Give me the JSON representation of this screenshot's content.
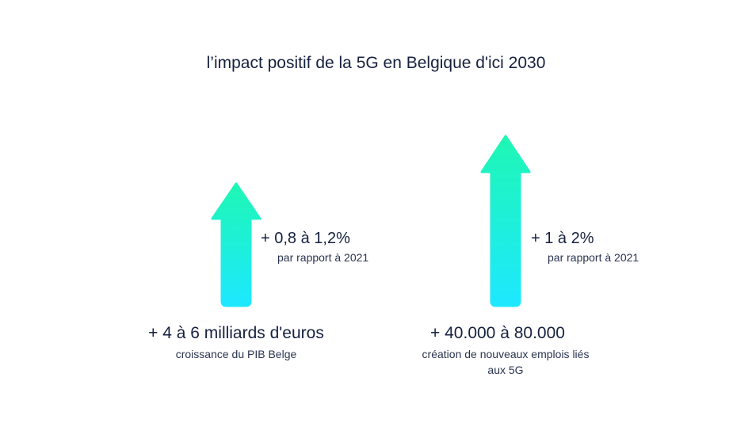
{
  "title": "l’impact positif de la 5G en Belgique d'ici 2030",
  "colors": {
    "arrow_top": "#1ef7b4",
    "arrow_bottom": "#1ee8ff",
    "text": "#16213e"
  },
  "left": {
    "growth": "+ 0,8 à 1,2%",
    "growth_note": "par rapport à 2021",
    "headline": "+ 4 à 6 milliards d'euros",
    "description": "croissance du PIB Belge"
  },
  "right": {
    "growth": "+ 1 à 2%",
    "growth_note": "par rapport à 2021",
    "headline": "+ 40.000 à 80.000",
    "description_line1": "création de nouveaux emplois liés",
    "description_line2": "aux 5G"
  }
}
